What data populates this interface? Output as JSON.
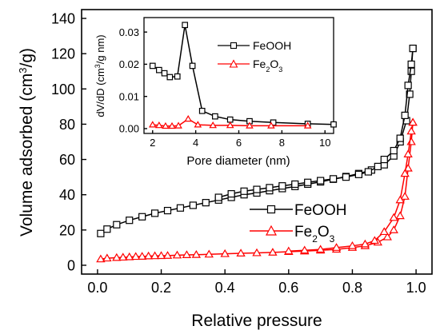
{
  "chart_data": [
    {
      "type": "line",
      "xlabel": "Relative pressure",
      "ylabel": "Volume adsorbed (cm³/g)",
      "ylabel_parts": {
        "pre": "Volume adsorbed (cm",
        "sup": "3",
        "post": "/g)"
      },
      "xlim": [
        -0.05,
        1.05
      ],
      "ylim": [
        -5,
        145
      ],
      "x_ticks": [
        0.0,
        0.2,
        0.4,
        0.6,
        0.8,
        1.0
      ],
      "x_tick_labels": [
        "0.0",
        "0.2",
        "0.4",
        "0.6",
        "0.8",
        "1.0"
      ],
      "y_ticks": [
        0,
        20,
        40,
        60,
        80,
        100,
        120,
        140
      ],
      "y_tick_labels": [
        "0",
        "20",
        "40",
        "60",
        "80",
        "100",
        "120",
        "140"
      ],
      "legend_position": "lower-right",
      "series": [
        {
          "name": "FeOOH",
          "name_parts": {
            "pre": "FeOOH",
            "sub1": "",
            "mid": "",
            "sub2": ""
          },
          "color": "#000000",
          "marker": "square",
          "branches": [
            {
              "x": [
                0.01,
                0.03,
                0.06,
                0.1,
                0.14,
                0.18,
                0.22,
                0.26,
                0.3,
                0.34,
                0.38,
                0.42,
                0.46,
                0.5,
                0.54,
                0.58,
                0.62,
                0.66,
                0.7,
                0.74,
                0.78,
                0.82,
                0.86,
                0.9,
                0.93,
                0.95,
                0.97,
                0.98,
                0.985,
                0.99
              ],
              "y": [
                18,
                20.5,
                23,
                25.5,
                27.5,
                29.5,
                31,
                32.5,
                34,
                35.5,
                37,
                38.5,
                40,
                41,
                42.3,
                43.5,
                44.7,
                46,
                47.3,
                48.8,
                50.3,
                52,
                54,
                57,
                62,
                70,
                82,
                97,
                110,
                123
              ]
            },
            {
              "x": [
                0.99,
                0.985,
                0.975,
                0.965,
                0.95,
                0.93,
                0.9,
                0.88,
                0.85,
                0.82,
                0.78,
                0.74,
                0.7,
                0.66,
                0.62,
                0.58,
                0.54,
                0.5,
                0.46,
                0.42,
                0.38
              ],
              "y": [
                123,
                114,
                102,
                85,
                72,
                65,
                60,
                56,
                53,
                51.5,
                50,
                49,
                48,
                47,
                46,
                45,
                44,
                43,
                42,
                40.5,
                38.5
              ]
            }
          ]
        },
        {
          "name": "Fe2O3",
          "name_parts": {
            "pre": "Fe",
            "sub1": "2",
            "mid": "O",
            "sub2": "3"
          },
          "color": "#ff0000",
          "marker": "triangle",
          "branches": [
            {
              "x": [
                0.01,
                0.03,
                0.06,
                0.08,
                0.1,
                0.12,
                0.14,
                0.16,
                0.18,
                0.2,
                0.22,
                0.25,
                0.28,
                0.31,
                0.35,
                0.4,
                0.45,
                0.5,
                0.55,
                0.6,
                0.65,
                0.7,
                0.75,
                0.8,
                0.84,
                0.88,
                0.91,
                0.93,
                0.95,
                0.965,
                0.975,
                0.985,
                0.99
              ],
              "y": [
                3.5,
                4,
                4.3,
                4.5,
                4.7,
                4.9,
                5,
                5.2,
                5.3,
                5.4,
                5.5,
                5.7,
                5.9,
                6,
                6.2,
                6.5,
                6.8,
                7,
                7.3,
                7.7,
                8,
                8.5,
                9,
                10,
                11,
                13,
                16,
                20,
                28,
                39,
                55,
                70,
                81
              ]
            },
            {
              "x": [
                0.99,
                0.985,
                0.975,
                0.965,
                0.95,
                0.93,
                0.9,
                0.87,
                0.84,
                0.8,
                0.75,
                0.7,
                0.65,
                0.6
              ],
              "y": [
                81,
                76,
                63,
                52,
                37,
                27,
                19,
                14,
                12,
                11,
                10,
                9,
                8.5,
                8
              ]
            }
          ]
        }
      ]
    },
    {
      "type": "line",
      "role": "inset",
      "xlabel": "Pore diameter (nm)",
      "ylabel": "dV/dD (cm³/g nm)",
      "ylabel_parts": {
        "pre": "dV/dD (cm",
        "sup": "3",
        "post": "/g nm)"
      },
      "xlim": [
        1.6,
        10.4
      ],
      "ylim": [
        -0.0015,
        0.0345
      ],
      "x_ticks": [
        2,
        4,
        6,
        8,
        10
      ],
      "x_tick_labels": [
        "2",
        "4",
        "6",
        "8",
        "10"
      ],
      "y_ticks": [
        0.0,
        0.01,
        0.02,
        0.03
      ],
      "y_tick_labels": [
        "0.00",
        "0.01",
        "0.02",
        "0.03"
      ],
      "legend_position": "top-right",
      "series": [
        {
          "name": "FeOOH",
          "name_parts": {
            "pre": "FeOOH",
            "sub1": "",
            "mid": "",
            "sub2": ""
          },
          "color": "#000000",
          "marker": "square",
          "branches": [
            {
              "x": [
                2.0,
                2.3,
                2.55,
                2.8,
                3.15,
                3.5,
                3.85,
                4.3,
                4.9,
                5.6,
                6.5,
                7.6,
                9.2,
                10.4
              ],
              "y": [
                0.0195,
                0.0182,
                0.0172,
                0.016,
                0.0162,
                0.0322,
                0.0195,
                0.0055,
                0.0038,
                0.0028,
                0.0023,
                0.0019,
                0.0015,
                0.0013
              ]
            }
          ]
        },
        {
          "name": "Fe2O3",
          "name_parts": {
            "pre": "Fe",
            "sub1": "2",
            "mid": "O",
            "sub2": "3"
          },
          "color": "#ff0000",
          "marker": "triangle",
          "branches": [
            {
              "x": [
                2.0,
                2.3,
                2.6,
                2.9,
                3.2,
                3.65,
                4.1,
                4.8,
                5.6,
                6.5,
                7.5,
                9.2
              ],
              "y": [
                0.0012,
                0.001,
                0.0008,
                0.0008,
                0.0009,
                0.003,
                0.0012,
                0.001,
                0.001,
                0.0009,
                0.0009,
                0.0009
              ]
            }
          ]
        }
      ]
    }
  ]
}
